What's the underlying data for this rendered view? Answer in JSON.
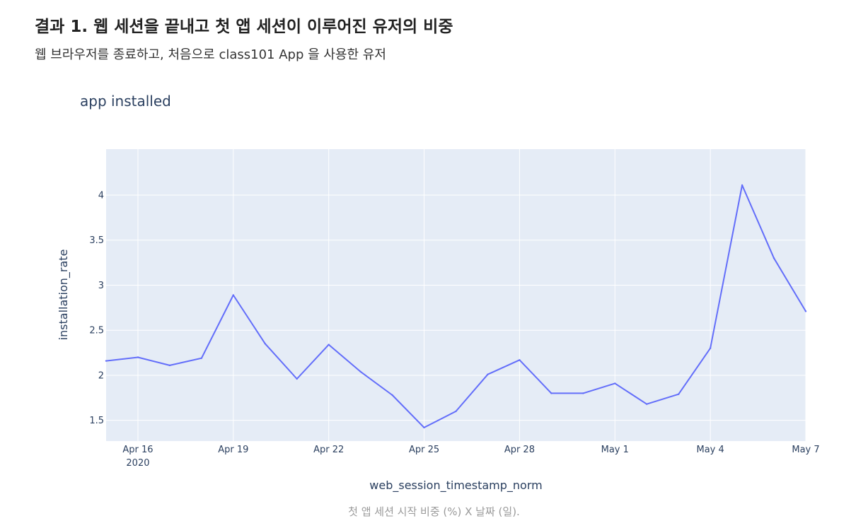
{
  "header": {
    "title": "결과 1. 웹 세션을 끝내고 첫 앱 세션이 이루어진 유저의 비중",
    "subtitle": "웹 브라우저를 종료하고, 처음으로 class101 App 을 사용한 유저"
  },
  "caption": "첫 앱 세션 시작 비중 (%) X 날짜 (일).",
  "chart_data": {
    "type": "line",
    "title": "app installed",
    "xlabel": "web_session_timestamp_norm",
    "ylabel": "installation_rate",
    "x": [
      "2020-04-15",
      "2020-04-16",
      "2020-04-17",
      "2020-04-18",
      "2020-04-19",
      "2020-04-20",
      "2020-04-21",
      "2020-04-22",
      "2020-04-23",
      "2020-04-24",
      "2020-04-25",
      "2020-04-26",
      "2020-04-27",
      "2020-04-28",
      "2020-04-29",
      "2020-04-30",
      "2020-05-01",
      "2020-05-02",
      "2020-05-03",
      "2020-05-04",
      "2020-05-05",
      "2020-05-06",
      "2020-05-07"
    ],
    "series": [
      {
        "values": [
          2.16,
          2.2,
          2.11,
          2.19,
          2.89,
          2.35,
          1.96,
          2.34,
          2.04,
          1.78,
          1.42,
          1.6,
          2.01,
          2.17,
          1.8,
          1.8,
          1.91,
          1.68,
          1.79,
          2.3,
          4.11,
          3.3,
          2.71
        ]
      }
    ],
    "xlim": [
      "2020-04-15",
      "2020-05-07"
    ],
    "ylim": [
      1.27,
      4.51
    ],
    "x_ticks": [
      {
        "date": "2020-04-16",
        "label": "Apr 16",
        "sublabel": "2020"
      },
      {
        "date": "2020-04-19",
        "label": "Apr 19"
      },
      {
        "date": "2020-04-22",
        "label": "Apr 22"
      },
      {
        "date": "2020-04-25",
        "label": "Apr 25"
      },
      {
        "date": "2020-04-28",
        "label": "Apr 28"
      },
      {
        "date": "2020-05-01",
        "label": "May 1"
      },
      {
        "date": "2020-05-04",
        "label": "May 4"
      },
      {
        "date": "2020-05-07",
        "label": "May 7"
      }
    ],
    "y_ticks": [
      {
        "value": 1.5,
        "label": "1.5"
      },
      {
        "value": 2,
        "label": "2"
      },
      {
        "value": 2.5,
        "label": "2.5"
      },
      {
        "value": 3,
        "label": "3"
      },
      {
        "value": 3.5,
        "label": "3.5"
      },
      {
        "value": 4,
        "label": "4"
      }
    ],
    "grid": true,
    "colors": {
      "line": "#636efa",
      "plot_bg": "#e5ecf6",
      "grid": "#ffffff",
      "text": "#2a3f5f"
    }
  }
}
